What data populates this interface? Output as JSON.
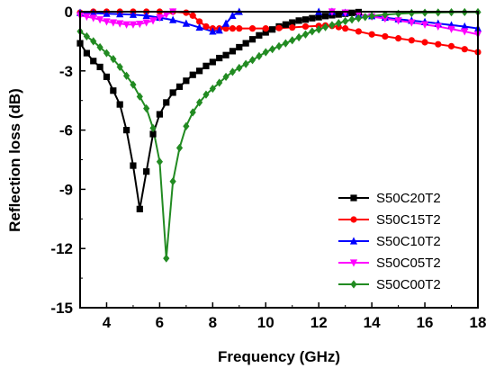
{
  "chart_data": {
    "type": "line",
    "xlabel": "Frequency (GHz)",
    "ylabel": "Reflection loss (dB)",
    "xlim": [
      3,
      18
    ],
    "ylim": [
      -15,
      0
    ],
    "xticks": [
      4,
      6,
      8,
      10,
      12,
      14,
      16,
      18
    ],
    "yticks": [
      0,
      -3,
      -6,
      -9,
      -12,
      -15
    ],
    "legend_position": "lower-right",
    "series": [
      {
        "name": "S50C20T2",
        "color": "#000000",
        "marker": "square",
        "points": [
          [
            3.0,
            -1.6
          ],
          [
            3.25,
            -2.1
          ],
          [
            3.5,
            -2.5
          ],
          [
            3.75,
            -2.8
          ],
          [
            4.0,
            -3.3
          ],
          [
            4.25,
            -4.0
          ],
          [
            4.5,
            -4.7
          ],
          [
            4.75,
            -6.0
          ],
          [
            5.0,
            -7.8
          ],
          [
            5.25,
            -10.0
          ],
          [
            5.5,
            -8.1
          ],
          [
            5.75,
            -6.2
          ],
          [
            6.0,
            -5.2
          ],
          [
            6.25,
            -4.6
          ],
          [
            6.5,
            -4.1
          ],
          [
            6.75,
            -3.8
          ],
          [
            7.0,
            -3.5
          ],
          [
            7.25,
            -3.2
          ],
          [
            7.5,
            -3.0
          ],
          [
            7.75,
            -2.75
          ],
          [
            8.0,
            -2.55
          ],
          [
            8.25,
            -2.35
          ],
          [
            8.5,
            -2.2
          ],
          [
            8.75,
            -2.0
          ],
          [
            9.0,
            -1.8
          ],
          [
            9.25,
            -1.6
          ],
          [
            9.5,
            -1.4
          ],
          [
            9.75,
            -1.2
          ],
          [
            10.0,
            -1.05
          ],
          [
            10.25,
            -0.9
          ],
          [
            10.5,
            -0.75
          ],
          [
            10.75,
            -0.65
          ],
          [
            11.0,
            -0.55
          ],
          [
            11.25,
            -0.45
          ],
          [
            11.5,
            -0.4
          ],
          [
            11.75,
            -0.33
          ],
          [
            12.0,
            -0.28
          ],
          [
            12.25,
            -0.22
          ],
          [
            12.5,
            -0.18
          ],
          [
            12.75,
            -0.14
          ],
          [
            13.0,
            -0.1
          ],
          [
            13.25,
            -0.06
          ],
          [
            13.5,
            -0.02
          ]
        ]
      },
      {
        "name": "S50C15T2",
        "color": "#ff0000",
        "marker": "circle",
        "points": [
          [
            3.0,
            -0.05
          ],
          [
            3.5,
            0.0
          ],
          [
            4.0,
            0.0
          ],
          [
            4.5,
            0.0
          ],
          [
            5.0,
            0.0
          ],
          [
            5.5,
            0.0
          ],
          [
            6.0,
            0.0
          ],
          [
            6.5,
            0.0
          ],
          [
            7.0,
            -0.05
          ],
          [
            7.25,
            -0.2
          ],
          [
            7.5,
            -0.5
          ],
          [
            7.75,
            -0.75
          ],
          [
            8.0,
            -0.85
          ],
          [
            8.25,
            -0.85
          ],
          [
            8.5,
            -0.85
          ],
          [
            8.75,
            -0.85
          ],
          [
            9.0,
            -0.85
          ],
          [
            9.5,
            -0.85
          ],
          [
            10.0,
            -0.85
          ],
          [
            10.5,
            -0.83
          ],
          [
            11.0,
            -0.8
          ],
          [
            11.5,
            -0.75
          ],
          [
            12.0,
            -0.72
          ],
          [
            12.25,
            -0.7
          ],
          [
            12.5,
            -0.72
          ],
          [
            12.75,
            -0.78
          ],
          [
            13.0,
            -0.85
          ],
          [
            13.5,
            -1.0
          ],
          [
            14.0,
            -1.15
          ],
          [
            14.5,
            -1.25
          ],
          [
            15.0,
            -1.35
          ],
          [
            15.5,
            -1.45
          ],
          [
            16.0,
            -1.55
          ],
          [
            16.5,
            -1.65
          ],
          [
            17.0,
            -1.75
          ],
          [
            17.5,
            -1.9
          ],
          [
            18.0,
            -2.05
          ]
        ]
      },
      {
        "name": "S50C10T2",
        "color": "#0000ff",
        "marker": "triangle-up",
        "points": [
          [
            3.0,
            -0.05
          ],
          [
            3.5,
            -0.07
          ],
          [
            4.0,
            -0.1
          ],
          [
            4.5,
            -0.12
          ],
          [
            5.0,
            -0.15
          ],
          [
            5.5,
            -0.2
          ],
          [
            6.0,
            -0.3
          ],
          [
            6.5,
            -0.42
          ],
          [
            7.0,
            -0.6
          ],
          [
            7.5,
            -0.8
          ],
          [
            8.0,
            -1.0
          ],
          [
            8.25,
            -0.95
          ],
          [
            8.5,
            -0.6
          ],
          [
            8.75,
            -0.2
          ],
          [
            9.0,
            0.0
          ],
          [
            12.0,
            0.0
          ],
          [
            12.5,
            0.0
          ],
          [
            13.0,
            -0.05
          ],
          [
            13.5,
            -0.15
          ],
          [
            14.0,
            -0.22
          ],
          [
            14.5,
            -0.3
          ],
          [
            15.0,
            -0.38
          ],
          [
            15.5,
            -0.45
          ],
          [
            16.0,
            -0.52
          ],
          [
            16.5,
            -0.6
          ],
          [
            17.0,
            -0.68
          ],
          [
            17.5,
            -0.75
          ],
          [
            18.0,
            -0.85
          ]
        ]
      },
      {
        "name": "S50C05T2",
        "color": "#ff00ff",
        "marker": "triangle-down",
        "points": [
          [
            3.0,
            -0.2
          ],
          [
            3.25,
            -0.25
          ],
          [
            3.5,
            -0.32
          ],
          [
            3.75,
            -0.4
          ],
          [
            4.0,
            -0.5
          ],
          [
            4.25,
            -0.55
          ],
          [
            4.5,
            -0.6
          ],
          [
            4.75,
            -0.65
          ],
          [
            5.0,
            -0.65
          ],
          [
            5.25,
            -0.62
          ],
          [
            5.5,
            -0.55
          ],
          [
            5.75,
            -0.45
          ],
          [
            6.0,
            -0.3
          ],
          [
            6.25,
            -0.15
          ],
          [
            6.5,
            0.0
          ],
          [
            12.5,
            0.0
          ],
          [
            13.0,
            -0.05
          ],
          [
            13.5,
            -0.12
          ],
          [
            14.0,
            -0.25
          ],
          [
            14.5,
            -0.35
          ],
          [
            15.0,
            -0.45
          ],
          [
            15.5,
            -0.55
          ],
          [
            16.0,
            -0.65
          ],
          [
            16.5,
            -0.75
          ],
          [
            17.0,
            -0.88
          ],
          [
            17.5,
            -1.0
          ],
          [
            18.0,
            -1.15
          ]
        ]
      },
      {
        "name": "S50C00T2",
        "color": "#228b22",
        "marker": "diamond",
        "points": [
          [
            3.0,
            -1.0
          ],
          [
            3.25,
            -1.25
          ],
          [
            3.5,
            -1.5
          ],
          [
            3.75,
            -1.8
          ],
          [
            4.0,
            -2.1
          ],
          [
            4.25,
            -2.4
          ],
          [
            4.5,
            -2.8
          ],
          [
            4.75,
            -3.25
          ],
          [
            5.0,
            -3.7
          ],
          [
            5.25,
            -4.3
          ],
          [
            5.5,
            -4.9
          ],
          [
            5.75,
            -5.9
          ],
          [
            6.0,
            -7.6
          ],
          [
            6.25,
            -12.5
          ],
          [
            6.5,
            -8.6
          ],
          [
            6.75,
            -6.9
          ],
          [
            7.0,
            -5.8
          ],
          [
            7.25,
            -5.1
          ],
          [
            7.5,
            -4.6
          ],
          [
            7.75,
            -4.2
          ],
          [
            8.0,
            -3.9
          ],
          [
            8.25,
            -3.6
          ],
          [
            8.5,
            -3.3
          ],
          [
            8.75,
            -3.05
          ],
          [
            9.0,
            -2.85
          ],
          [
            9.25,
            -2.65
          ],
          [
            9.5,
            -2.45
          ],
          [
            9.75,
            -2.25
          ],
          [
            10.0,
            -2.05
          ],
          [
            10.25,
            -1.9
          ],
          [
            10.5,
            -1.75
          ],
          [
            10.75,
            -1.6
          ],
          [
            11.0,
            -1.45
          ],
          [
            11.25,
            -1.3
          ],
          [
            11.5,
            -1.15
          ],
          [
            11.75,
            -1.0
          ],
          [
            12.0,
            -0.9
          ],
          [
            12.25,
            -0.78
          ],
          [
            12.5,
            -0.68
          ],
          [
            12.75,
            -0.58
          ],
          [
            13.0,
            -0.48
          ],
          [
            13.25,
            -0.4
          ],
          [
            13.5,
            -0.33
          ],
          [
            13.75,
            -0.27
          ],
          [
            14.0,
            -0.22
          ],
          [
            14.5,
            -0.15
          ],
          [
            15.0,
            -0.1
          ],
          [
            15.5,
            -0.07
          ],
          [
            16.0,
            -0.05
          ],
          [
            16.5,
            -0.04
          ],
          [
            17.0,
            -0.03
          ],
          [
            17.5,
            -0.02
          ],
          [
            18.0,
            -0.02
          ]
        ]
      }
    ]
  }
}
